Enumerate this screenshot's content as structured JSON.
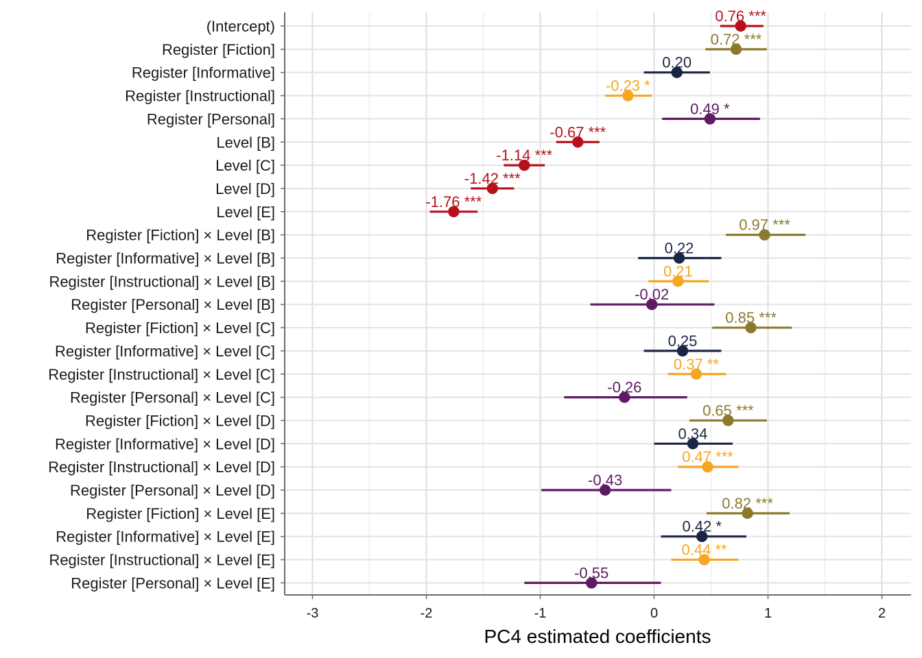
{
  "chart_data": {
    "type": "scatter",
    "subtype": "coefficient-plot",
    "title": "",
    "xlabel": "PC4 estimated coefficients",
    "ylabel": "",
    "xlim": [
      -3.25,
      2.25
    ],
    "x_ticks": [
      -3,
      -2,
      -1,
      0,
      1,
      2
    ],
    "grid": true,
    "legend": "none",
    "groups": {
      "intercept_level": "#b5121b",
      "fiction": "#8b7a2e",
      "informative": "#1b2546",
      "instructional": "#f5a623",
      "personal": "#5e1a63"
    },
    "points": [
      {
        "term": "(Intercept)",
        "group": "intercept_level",
        "estimate": 0.76,
        "ci": [
          0.58,
          0.96
        ],
        "label": "0.76 ***"
      },
      {
        "term": "Register [Fiction]",
        "group": "fiction",
        "estimate": 0.72,
        "ci": [
          0.45,
          0.99
        ],
        "label": "0.72 ***"
      },
      {
        "term": "Register [Informative]",
        "group": "informative",
        "estimate": 0.2,
        "ci": [
          -0.09,
          0.49
        ],
        "label": "0.20"
      },
      {
        "term": "Register [Instructional]",
        "group": "instructional",
        "estimate": -0.23,
        "ci": [
          -0.43,
          -0.02
        ],
        "label": "-0.23 *"
      },
      {
        "term": "Register [Personal]",
        "group": "personal",
        "estimate": 0.49,
        "ci": [
          0.07,
          0.93
        ],
        "label": "0.49 *"
      },
      {
        "term": "Level [B]",
        "group": "intercept_level",
        "estimate": -0.67,
        "ci": [
          -0.86,
          -0.48
        ],
        "label": "-0.67 ***"
      },
      {
        "term": "Level [C]",
        "group": "intercept_level",
        "estimate": -1.14,
        "ci": [
          -1.32,
          -0.96
        ],
        "label": "-1.14 ***"
      },
      {
        "term": "Level [D]",
        "group": "intercept_level",
        "estimate": -1.42,
        "ci": [
          -1.61,
          -1.23
        ],
        "label": "-1.42 ***"
      },
      {
        "term": "Level [E]",
        "group": "intercept_level",
        "estimate": -1.76,
        "ci": [
          -1.97,
          -1.55
        ],
        "label": "-1.76 ***"
      },
      {
        "term": "Register [Fiction] × Level [B]",
        "group": "fiction",
        "estimate": 0.97,
        "ci": [
          0.63,
          1.33
        ],
        "label": "0.97 ***"
      },
      {
        "term": "Register [Informative] × Level [B]",
        "group": "informative",
        "estimate": 0.22,
        "ci": [
          -0.14,
          0.59
        ],
        "label": "0.22"
      },
      {
        "term": "Register [Instructional] × Level [B]",
        "group": "instructional",
        "estimate": 0.21,
        "ci": [
          -0.05,
          0.48
        ],
        "label": "0.21"
      },
      {
        "term": "Register [Personal] × Level [B]",
        "group": "personal",
        "estimate": -0.02,
        "ci": [
          -0.56,
          0.53
        ],
        "label": "-0.02"
      },
      {
        "term": "Register [Fiction] × Level [C]",
        "group": "fiction",
        "estimate": 0.85,
        "ci": [
          0.51,
          1.21
        ],
        "label": "0.85 ***"
      },
      {
        "term": "Register [Informative] × Level [C]",
        "group": "informative",
        "estimate": 0.25,
        "ci": [
          -0.09,
          0.59
        ],
        "label": "0.25"
      },
      {
        "term": "Register [Instructional] × Level [C]",
        "group": "instructional",
        "estimate": 0.37,
        "ci": [
          0.12,
          0.63
        ],
        "label": "0.37 **"
      },
      {
        "term": "Register [Personal] × Level [C]",
        "group": "personal",
        "estimate": -0.26,
        "ci": [
          -0.79,
          0.29
        ],
        "label": "-0.26"
      },
      {
        "term": "Register [Fiction] × Level [D]",
        "group": "fiction",
        "estimate": 0.65,
        "ci": [
          0.31,
          0.99
        ],
        "label": "0.65 ***"
      },
      {
        "term": "Register [Informative] × Level [D]",
        "group": "informative",
        "estimate": 0.34,
        "ci": [
          0.0,
          0.69
        ],
        "label": "0.34"
      },
      {
        "term": "Register [Instructional] × Level [D]",
        "group": "instructional",
        "estimate": 0.47,
        "ci": [
          0.21,
          0.74
        ],
        "label": "0.47 ***"
      },
      {
        "term": "Register [Personal] × Level [D]",
        "group": "personal",
        "estimate": -0.43,
        "ci": [
          -0.99,
          0.15
        ],
        "label": "-0.43"
      },
      {
        "term": "Register [Fiction] × Level [E]",
        "group": "fiction",
        "estimate": 0.82,
        "ci": [
          0.46,
          1.19
        ],
        "label": "0.82 ***"
      },
      {
        "term": "Register [Informative] × Level [E]",
        "group": "informative",
        "estimate": 0.42,
        "ci": [
          0.06,
          0.81
        ],
        "label": "0.42 *"
      },
      {
        "term": "Register [Instructional] × Level [E]",
        "group": "instructional",
        "estimate": 0.44,
        "ci": [
          0.15,
          0.74
        ],
        "label": "0.44 **"
      },
      {
        "term": "Register [Personal] × Level [E]",
        "group": "personal",
        "estimate": -0.55,
        "ci": [
          -1.14,
          0.06
        ],
        "label": "-0.55"
      }
    ]
  }
}
